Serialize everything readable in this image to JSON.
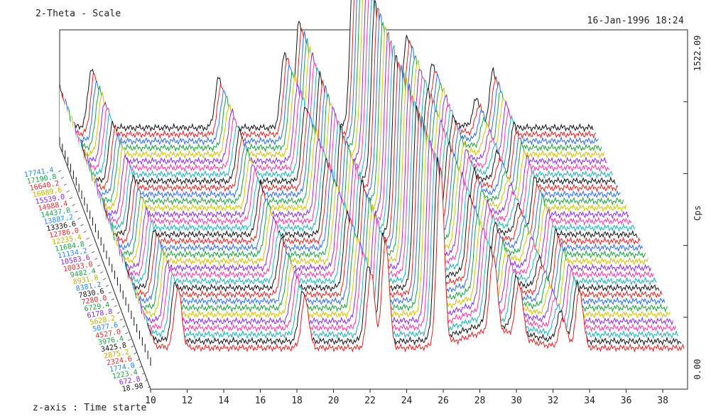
{
  "header": {
    "title": "2-Theta - Scale",
    "timestamp": "16-Jan-1996 18:24",
    "zaxis_label": "z-axis : Time starte"
  },
  "chart_data": {
    "type": "waterfall",
    "title": "2-Theta - Scale",
    "xlabel": "",
    "ylabel": "Cps",
    "zlabel": "z-axis : Time starte",
    "x_ticks": [
      "10",
      "12",
      "14",
      "16",
      "18",
      "20",
      "22",
      "24",
      "26",
      "28",
      "30",
      "32",
      "34",
      "36",
      "38"
    ],
    "xlim": [
      10,
      39.2
    ],
    "y_ticks": [
      "0.00",
      "1522.09"
    ],
    "ylim": [
      0,
      1522.09
    ],
    "z_ticks": [
      "17741.4",
      "17190.8",
      "16640.2",
      "16089.6",
      "15539.0",
      "14988.4",
      "14437.8",
      "13887.2",
      "13336.6",
      "12786.0",
      "12235.4",
      "11684.8",
      "11134.2",
      "10583.6",
      "10033.0",
      "9482.4",
      "8931.8",
      "8381.2",
      "7830.6",
      "7280.0",
      "6729.4",
      "6178.8",
      "5628.2",
      "5077.6",
      "4527.0",
      "3976.4",
      "3425.8",
      "2875.2",
      "2324.6",
      "1774.0",
      "1223.4",
      "672.8",
      "18.98"
    ],
    "z_tick_colors": [
      "#2a8af0",
      "#22a04a",
      "#e03030",
      "#c8b000",
      "#8a2be2",
      "#e03030",
      "#22a04a",
      "#2a8af0",
      "#111111",
      "#e03030",
      "#c8b000",
      "#22a04a",
      "#2a8af0",
      "#8a2be2",
      "#e03030",
      "#22a04a",
      "#c8b000",
      "#2a8af0",
      "#111111",
      "#e03030",
      "#22a04a",
      "#8a2be2",
      "#c8b000",
      "#2a8af0",
      "#e03030",
      "#22a04a",
      "#111111",
      "#c8b000",
      "#e03030",
      "#2a8af0",
      "#22a04a",
      "#8a2be2",
      "#111111"
    ],
    "baseline": 150,
    "peaks": [
      {
        "x": 10.0,
        "height": 300
      },
      {
        "x": 11.75,
        "height": 500
      },
      {
        "x": 18.7,
        "height": 420
      },
      {
        "x": 22.3,
        "height": 640
      },
      {
        "x": 23.1,
        "height": 900
      },
      {
        "x": 26.1,
        "height": 1500
      },
      {
        "x": 29.0,
        "height": 640
      },
      {
        "x": 30.4,
        "height": 450
      },
      {
        "x": 32.8,
        "height": 240
      },
      {
        "x": 33.7,
        "height": 480
      }
    ],
    "hump": {
      "center": 29.0,
      "height": 140
    },
    "num_scans": 34,
    "series_colors": [
      "#111111",
      "#e02020",
      "#2a6af0",
      "#1aa040",
      "#d4c000",
      "#8a2be2",
      "#ff33aa",
      "#1ab0c0"
    ]
  }
}
